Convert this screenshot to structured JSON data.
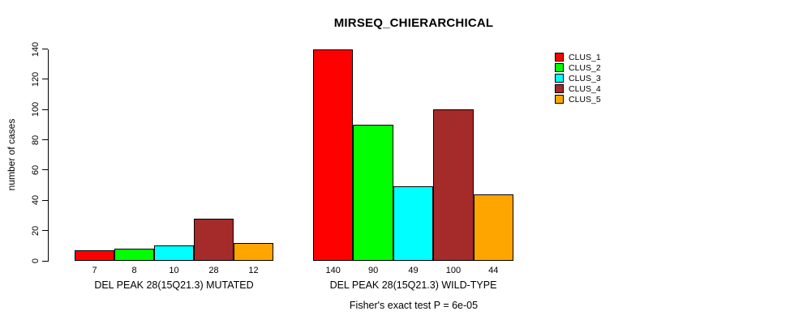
{
  "chart_data": {
    "type": "bar",
    "title": "MIRSEQ_CHIERARCHICAL",
    "ylabel": "number of cases",
    "xlabel": "",
    "ylim": [
      0,
      140
    ],
    "yticks": [
      0,
      20,
      40,
      60,
      80,
      100,
      120,
      140
    ],
    "grid": false,
    "legend_position": "top-right",
    "bar_value_labels_shown": true,
    "categories": [
      "DEL PEAK 28(15Q21.3) MUTATED",
      "DEL PEAK 28(15Q21.3) WILD-TYPE"
    ],
    "series": [
      {
        "name": "CLUS_1",
        "color": "#FF0000",
        "values": [
          7,
          140
        ]
      },
      {
        "name": "CLUS_2",
        "color": "#00FF00",
        "values": [
          8,
          90
        ]
      },
      {
        "name": "CLUS_3",
        "color": "#00FFFF",
        "values": [
          10,
          49
        ]
      },
      {
        "name": "CLUS_4",
        "color": "#A52A2A",
        "values": [
          28,
          100
        ]
      },
      {
        "name": "CLUS_5",
        "color": "#FFA500",
        "values": [
          12,
          44
        ]
      }
    ],
    "annotation": "Fisher's exact test P = 6e-05"
  },
  "colors": {
    "background": "#FFFFFF",
    "axis": "#000000",
    "text": "#000000"
  }
}
